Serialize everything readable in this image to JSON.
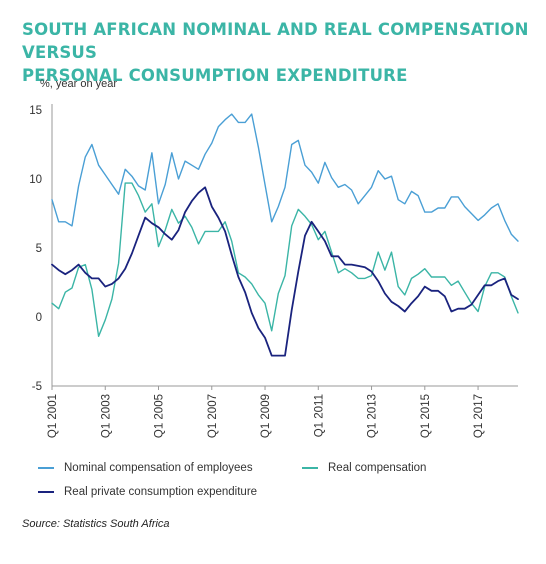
{
  "title_lines": [
    "SOUTH AFRICAN NOMINAL AND REAL COMPENSATION VERSUS",
    "PERSONAL CONSUMPTION EXPENDITURE"
  ],
  "source": "Source: Statistics South Africa",
  "colors": {
    "title": "#3bb5a6",
    "nominal": "#4a9fd5",
    "real": "#3bb5a6",
    "consumption": "#1a237e",
    "axis": "#999999"
  },
  "chart_data": {
    "type": "line",
    "ylabel": "%, year on year",
    "ylim": [
      -5,
      15
    ],
    "yticks": [
      15,
      10,
      5,
      0,
      -5
    ],
    "xlim": [
      2001,
      2018.5
    ],
    "xtick_labels": [
      "Q1 2001",
      "Q1 2003",
      "Q1 2005",
      "Q1 2007",
      "Q1 2009",
      "Q1 2011",
      "Q1 2013",
      "Q1 2015",
      "Q1 2017"
    ],
    "xtick_positions": [
      2001,
      2003,
      2005,
      2007,
      2009,
      2011,
      2013,
      2015,
      2017
    ],
    "grid": false,
    "legend_position": "bottom",
    "series": [
      {
        "name": "Nominal compensation of employees",
        "color": "#4a9fd5",
        "points": [
          [
            2001.0,
            8.5
          ],
          [
            2001.25,
            6.9
          ],
          [
            2001.5,
            6.9
          ],
          [
            2001.75,
            6.6
          ],
          [
            2002.0,
            9.5
          ],
          [
            2002.25,
            11.6
          ],
          [
            2002.5,
            12.5
          ],
          [
            2002.75,
            11.0
          ],
          [
            2003.0,
            10.3
          ],
          [
            2003.25,
            9.6
          ],
          [
            2003.5,
            8.9
          ],
          [
            2003.75,
            10.7
          ],
          [
            2004.0,
            10.2
          ],
          [
            2004.25,
            9.5
          ],
          [
            2004.5,
            9.2
          ],
          [
            2004.75,
            11.9
          ],
          [
            2005.0,
            8.2
          ],
          [
            2005.25,
            9.6
          ],
          [
            2005.5,
            11.9
          ],
          [
            2005.75,
            10.0
          ],
          [
            2006.0,
            11.3
          ],
          [
            2006.25,
            11.0
          ],
          [
            2006.5,
            10.7
          ],
          [
            2006.75,
            11.8
          ],
          [
            2007.0,
            12.6
          ],
          [
            2007.25,
            13.8
          ],
          [
            2007.5,
            14.3
          ],
          [
            2007.75,
            14.7
          ],
          [
            2008.0,
            14.1
          ],
          [
            2008.25,
            14.1
          ],
          [
            2008.5,
            14.7
          ],
          [
            2008.75,
            12.3
          ],
          [
            2009.0,
            9.6
          ],
          [
            2009.25,
            6.9
          ],
          [
            2009.5,
            8.0
          ],
          [
            2009.75,
            9.4
          ],
          [
            2010.0,
            12.5
          ],
          [
            2010.25,
            12.8
          ],
          [
            2010.5,
            11.0
          ],
          [
            2010.75,
            10.5
          ],
          [
            2011.0,
            9.7
          ],
          [
            2011.25,
            11.2
          ],
          [
            2011.5,
            10.1
          ],
          [
            2011.75,
            9.4
          ],
          [
            2012.0,
            9.6
          ],
          [
            2012.25,
            9.2
          ],
          [
            2012.5,
            8.2
          ],
          [
            2012.75,
            8.8
          ],
          [
            2013.0,
            9.4
          ],
          [
            2013.25,
            10.6
          ],
          [
            2013.5,
            10.0
          ],
          [
            2013.75,
            10.2
          ],
          [
            2014.0,
            8.5
          ],
          [
            2014.25,
            8.2
          ],
          [
            2014.5,
            9.1
          ],
          [
            2014.75,
            8.8
          ],
          [
            2015.0,
            7.6
          ],
          [
            2015.25,
            7.6
          ],
          [
            2015.5,
            7.9
          ],
          [
            2015.75,
            7.9
          ],
          [
            2016.0,
            8.7
          ],
          [
            2016.25,
            8.7
          ],
          [
            2016.5,
            8.0
          ],
          [
            2016.75,
            7.5
          ],
          [
            2017.0,
            7.0
          ],
          [
            2017.25,
            7.4
          ],
          [
            2017.5,
            7.9
          ],
          [
            2017.75,
            8.2
          ],
          [
            2018.0,
            7.0
          ],
          [
            2018.25,
            6.0
          ],
          [
            2018.5,
            5.5
          ]
        ]
      },
      {
        "name": "Real compensation",
        "color": "#3bb5a6",
        "points": [
          [
            2001.0,
            1.0
          ],
          [
            2001.25,
            0.6
          ],
          [
            2001.5,
            1.8
          ],
          [
            2001.75,
            2.1
          ],
          [
            2002.0,
            3.6
          ],
          [
            2002.25,
            3.8
          ],
          [
            2002.5,
            2.0
          ],
          [
            2002.75,
            -1.4
          ],
          [
            2003.0,
            -0.2
          ],
          [
            2003.25,
            1.3
          ],
          [
            2003.5,
            3.9
          ],
          [
            2003.75,
            9.7
          ],
          [
            2004.0,
            9.7
          ],
          [
            2004.25,
            8.8
          ],
          [
            2004.5,
            7.6
          ],
          [
            2004.75,
            8.2
          ],
          [
            2005.0,
            5.1
          ],
          [
            2005.25,
            6.3
          ],
          [
            2005.5,
            7.8
          ],
          [
            2005.75,
            6.8
          ],
          [
            2006.0,
            7.3
          ],
          [
            2006.25,
            6.5
          ],
          [
            2006.5,
            5.3
          ],
          [
            2006.75,
            6.2
          ],
          [
            2007.0,
            6.2
          ],
          [
            2007.25,
            6.2
          ],
          [
            2007.5,
            6.9
          ],
          [
            2007.75,
            5.5
          ],
          [
            2008.0,
            3.2
          ],
          [
            2008.25,
            2.9
          ],
          [
            2008.5,
            2.4
          ],
          [
            2008.75,
            1.6
          ],
          [
            2009.0,
            1.0
          ],
          [
            2009.25,
            -1.0
          ],
          [
            2009.5,
            1.7
          ],
          [
            2009.75,
            3.0
          ],
          [
            2010.0,
            6.6
          ],
          [
            2010.25,
            7.8
          ],
          [
            2010.5,
            7.3
          ],
          [
            2010.75,
            6.7
          ],
          [
            2011.0,
            5.6
          ],
          [
            2011.25,
            6.2
          ],
          [
            2011.5,
            4.7
          ],
          [
            2011.75,
            3.2
          ],
          [
            2012.0,
            3.5
          ],
          [
            2012.25,
            3.2
          ],
          [
            2012.5,
            2.8
          ],
          [
            2012.75,
            2.8
          ],
          [
            2013.0,
            3.0
          ],
          [
            2013.25,
            4.7
          ],
          [
            2013.5,
            3.4
          ],
          [
            2013.75,
            4.7
          ],
          [
            2014.0,
            2.2
          ],
          [
            2014.25,
            1.6
          ],
          [
            2014.5,
            2.8
          ],
          [
            2014.75,
            3.1
          ],
          [
            2015.0,
            3.5
          ],
          [
            2015.25,
            2.9
          ],
          [
            2015.5,
            2.9
          ],
          [
            2015.75,
            2.9
          ],
          [
            2016.0,
            2.3
          ],
          [
            2016.25,
            2.6
          ],
          [
            2016.5,
            1.8
          ],
          [
            2016.75,
            1.0
          ],
          [
            2017.0,
            0.4
          ],
          [
            2017.25,
            2.2
          ],
          [
            2017.5,
            3.2
          ],
          [
            2017.75,
            3.2
          ],
          [
            2018.0,
            2.9
          ],
          [
            2018.25,
            1.5
          ],
          [
            2018.5,
            0.3
          ]
        ]
      },
      {
        "name": "Real private consumption expenditure",
        "color": "#1a237e",
        "points": [
          [
            2001.0,
            3.8
          ],
          [
            2001.25,
            3.4
          ],
          [
            2001.5,
            3.1
          ],
          [
            2001.75,
            3.4
          ],
          [
            2002.0,
            3.8
          ],
          [
            2002.25,
            3.2
          ],
          [
            2002.5,
            2.8
          ],
          [
            2002.75,
            2.8
          ],
          [
            2003.0,
            2.2
          ],
          [
            2003.25,
            2.4
          ],
          [
            2003.5,
            2.8
          ],
          [
            2003.75,
            3.5
          ],
          [
            2004.0,
            4.6
          ],
          [
            2004.25,
            5.9
          ],
          [
            2004.5,
            7.2
          ],
          [
            2004.75,
            6.8
          ],
          [
            2005.0,
            6.5
          ],
          [
            2005.25,
            6.0
          ],
          [
            2005.5,
            5.6
          ],
          [
            2005.75,
            6.3
          ],
          [
            2006.0,
            7.6
          ],
          [
            2006.25,
            8.4
          ],
          [
            2006.5,
            9.0
          ],
          [
            2006.75,
            9.4
          ],
          [
            2007.0,
            8.0
          ],
          [
            2007.25,
            7.2
          ],
          [
            2007.5,
            6.2
          ],
          [
            2007.75,
            4.5
          ],
          [
            2008.0,
            2.9
          ],
          [
            2008.25,
            1.8
          ],
          [
            2008.5,
            0.3
          ],
          [
            2008.75,
            -0.8
          ],
          [
            2009.0,
            -1.5
          ],
          [
            2009.25,
            -2.8
          ],
          [
            2009.5,
            -2.8
          ],
          [
            2009.75,
            -2.8
          ],
          [
            2010.0,
            0.5
          ],
          [
            2010.25,
            3.3
          ],
          [
            2010.5,
            5.9
          ],
          [
            2010.75,
            6.9
          ],
          [
            2011.0,
            6.2
          ],
          [
            2011.25,
            5.5
          ],
          [
            2011.5,
            4.4
          ],
          [
            2011.75,
            4.4
          ],
          [
            2012.0,
            3.8
          ],
          [
            2012.25,
            3.8
          ],
          [
            2012.5,
            3.7
          ],
          [
            2012.75,
            3.6
          ],
          [
            2013.0,
            3.3
          ],
          [
            2013.25,
            2.6
          ],
          [
            2013.5,
            1.7
          ],
          [
            2013.75,
            1.1
          ],
          [
            2014.0,
            0.8
          ],
          [
            2014.25,
            0.4
          ],
          [
            2014.5,
            1.0
          ],
          [
            2014.75,
            1.5
          ],
          [
            2015.0,
            2.2
          ],
          [
            2015.25,
            1.9
          ],
          [
            2015.5,
            1.9
          ],
          [
            2015.75,
            1.5
          ],
          [
            2016.0,
            0.4
          ],
          [
            2016.25,
            0.6
          ],
          [
            2016.5,
            0.6
          ],
          [
            2016.75,
            0.9
          ],
          [
            2017.0,
            1.6
          ],
          [
            2017.25,
            2.3
          ],
          [
            2017.5,
            2.3
          ],
          [
            2017.75,
            2.6
          ],
          [
            2018.0,
            2.8
          ],
          [
            2018.25,
            1.6
          ],
          [
            2018.5,
            1.3
          ]
        ]
      }
    ]
  }
}
